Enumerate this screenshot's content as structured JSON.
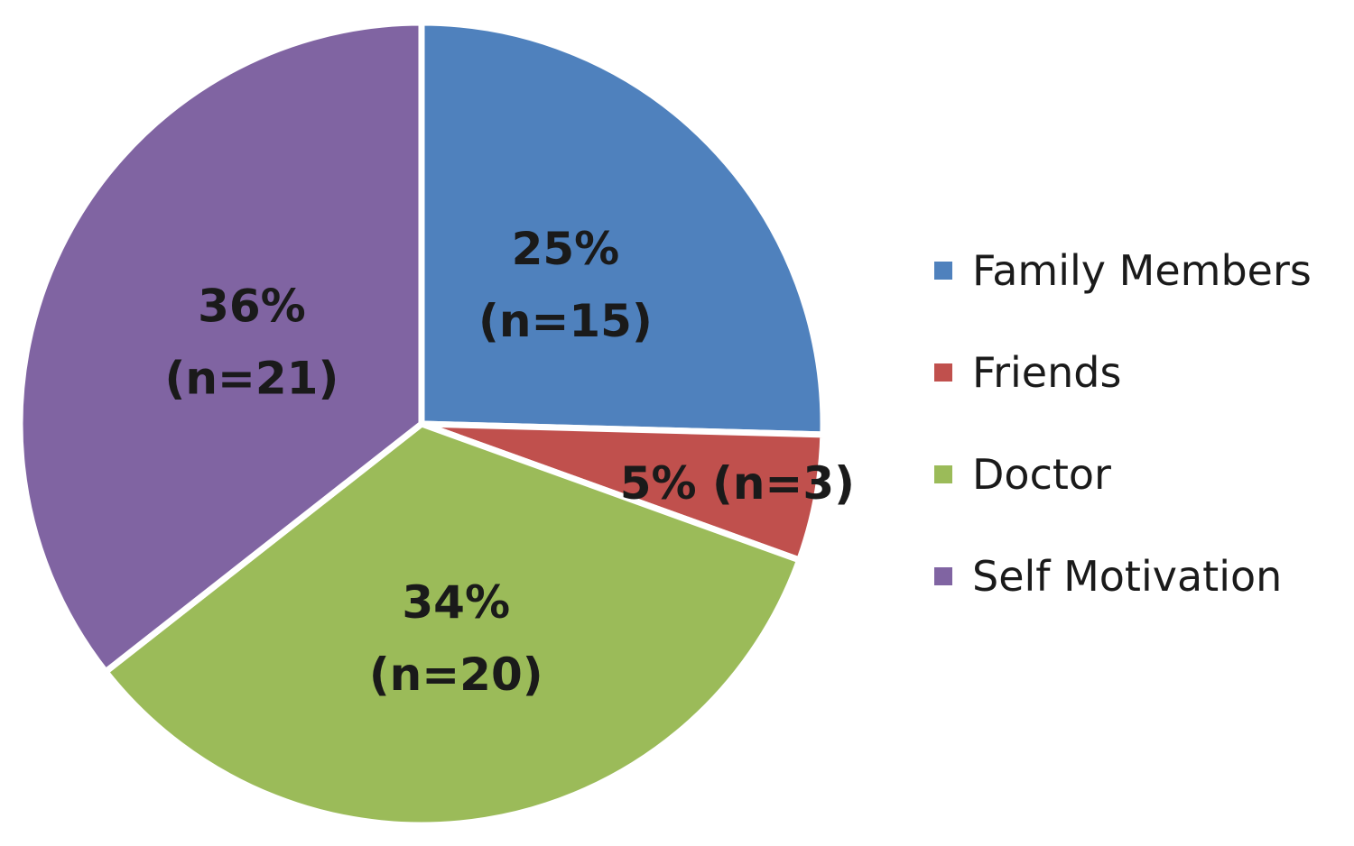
{
  "chart_data": {
    "type": "pie",
    "title": "",
    "categories": [
      "Family Members",
      "Friends",
      "Doctor",
      "Self Motivation"
    ],
    "values": [
      15,
      3,
      20,
      21
    ],
    "percent_labels": [
      "25%",
      "5%",
      "34%",
      "36%"
    ],
    "count_labels": [
      "(n=15)",
      "(n=3)",
      "(n=20)",
      "(n=21)"
    ],
    "colors": [
      "#4F81BD",
      "#C0504D",
      "#9BBB59",
      "#8064A2"
    ],
    "start_angle": "12 o'clock",
    "direction": "clockwise",
    "legend": {
      "position": "right",
      "items": [
        "Family Members",
        "Friends",
        "Doctor",
        "Self Motivation"
      ]
    }
  }
}
